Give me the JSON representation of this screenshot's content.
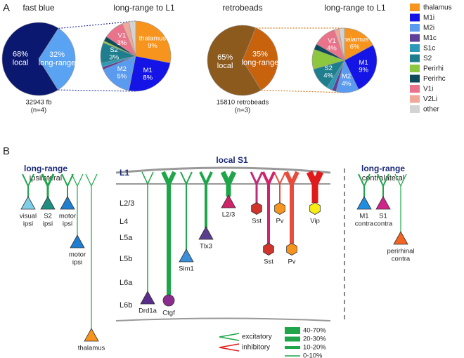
{
  "panel_labels": [
    "A",
    "B"
  ],
  "chart_data": [
    {
      "type": "pie",
      "title": "fast blue",
      "categories": [
        "local",
        "long-range"
      ],
      "values": [
        68,
        32
      ],
      "value_labels": [
        "68%",
        "32%"
      ],
      "colors": [
        "#0b1870",
        "#5aa2f2"
      ],
      "captions": [
        "32943 fb",
        "(n=4)"
      ]
    },
    {
      "type": "pie",
      "title": "long-range to L1",
      "categories": [
        "thalamus",
        "M1i",
        "M2i",
        "M1c",
        "S1c",
        "S2",
        "Perirhi",
        "Perirhc",
        "V1i",
        "V2Li",
        "other"
      ],
      "values": [
        9,
        8,
        5,
        0.4,
        0.6,
        3,
        0.3,
        0.7,
        3,
        1,
        1
      ],
      "slice_labels": [
        "thalamus",
        "M1",
        "M2",
        null,
        null,
        "S2",
        null,
        null,
        "V1",
        null,
        null
      ],
      "value_labels": [
        "9%",
        "8%",
        "5%",
        null,
        null,
        "3%",
        null,
        null,
        "3%",
        null,
        null
      ],
      "colors": [
        "#f7941d",
        "#1414e6",
        "#5b9bef",
        "#5e3f9a",
        "#2a9ab8",
        "#1f7e8e",
        "#8dc63f",
        "#0e4a5a",
        "#e8738a",
        "#f0a89a",
        "#d3d3d3"
      ],
      "legend": true
    },
    {
      "type": "pie",
      "title": "retrobeads",
      "categories": [
        "local",
        "long-range"
      ],
      "values": [
        65,
        35
      ],
      "value_labels": [
        "65%",
        "35%"
      ],
      "colors": [
        "#8c5a1c",
        "#c8620c"
      ],
      "captions": [
        "15810 retrobeads",
        "(n=3)"
      ]
    },
    {
      "type": "pie",
      "title": "long-range to L1",
      "categories": [
        "thalamus",
        "M1i",
        "M2i",
        "M1c",
        "S1c",
        "S2",
        "Perirhi",
        "Perirhc",
        "V1i",
        "V2Li",
        "other"
      ],
      "values": [
        6,
        9,
        4,
        0.7,
        1,
        4,
        3.5,
        1,
        4,
        0.8,
        1
      ],
      "slice_labels": [
        "thalamus",
        "M1",
        "M2",
        null,
        null,
        "S2",
        null,
        null,
        "V1",
        null,
        null
      ],
      "value_labels": [
        "6%",
        "9%",
        "4%",
        null,
        null,
        "4%",
        null,
        null,
        "4%",
        null,
        null
      ],
      "colors": [
        "#f7941d",
        "#1414e6",
        "#5b9bef",
        "#5e3f9a",
        "#2a9ab8",
        "#1f7e8e",
        "#8dc63f",
        "#0e4a5a",
        "#e8738a",
        "#f0a89a",
        "#d3d3d3"
      ]
    }
  ],
  "panel_b": {
    "local_title": "local S1",
    "layers": [
      "L1",
      "L2/3",
      "L4",
      "L5a",
      "L5b",
      "L6a",
      "L6b"
    ],
    "ipsi_title": [
      "long-range",
      "ipsilateral"
    ],
    "contra_title": [
      "long-range",
      "contralateral"
    ],
    "local_cells": [
      "Drd1a",
      "Ctgf",
      "Sim1",
      "Tlx3",
      "L2/3",
      "Sst",
      "Pv",
      "Vip",
      "Sst",
      "Pv"
    ],
    "ipsi_cells": [
      [
        "visual",
        "ipsi"
      ],
      [
        "S2",
        "ipsi"
      ],
      [
        "motor",
        "ipsi"
      ],
      [
        "motor",
        "ipsi"
      ],
      [
        "thalamus"
      ]
    ],
    "contra_cells": [
      [
        "M1",
        "contra"
      ],
      [
        "S1",
        "contra"
      ],
      [
        "perirhinal",
        "contra"
      ]
    ],
    "key": {
      "types": [
        "excitatory",
        "inhibitory"
      ],
      "widths": [
        "40-70%",
        "20-30%",
        "10-20%",
        "0-10%"
      ]
    }
  }
}
